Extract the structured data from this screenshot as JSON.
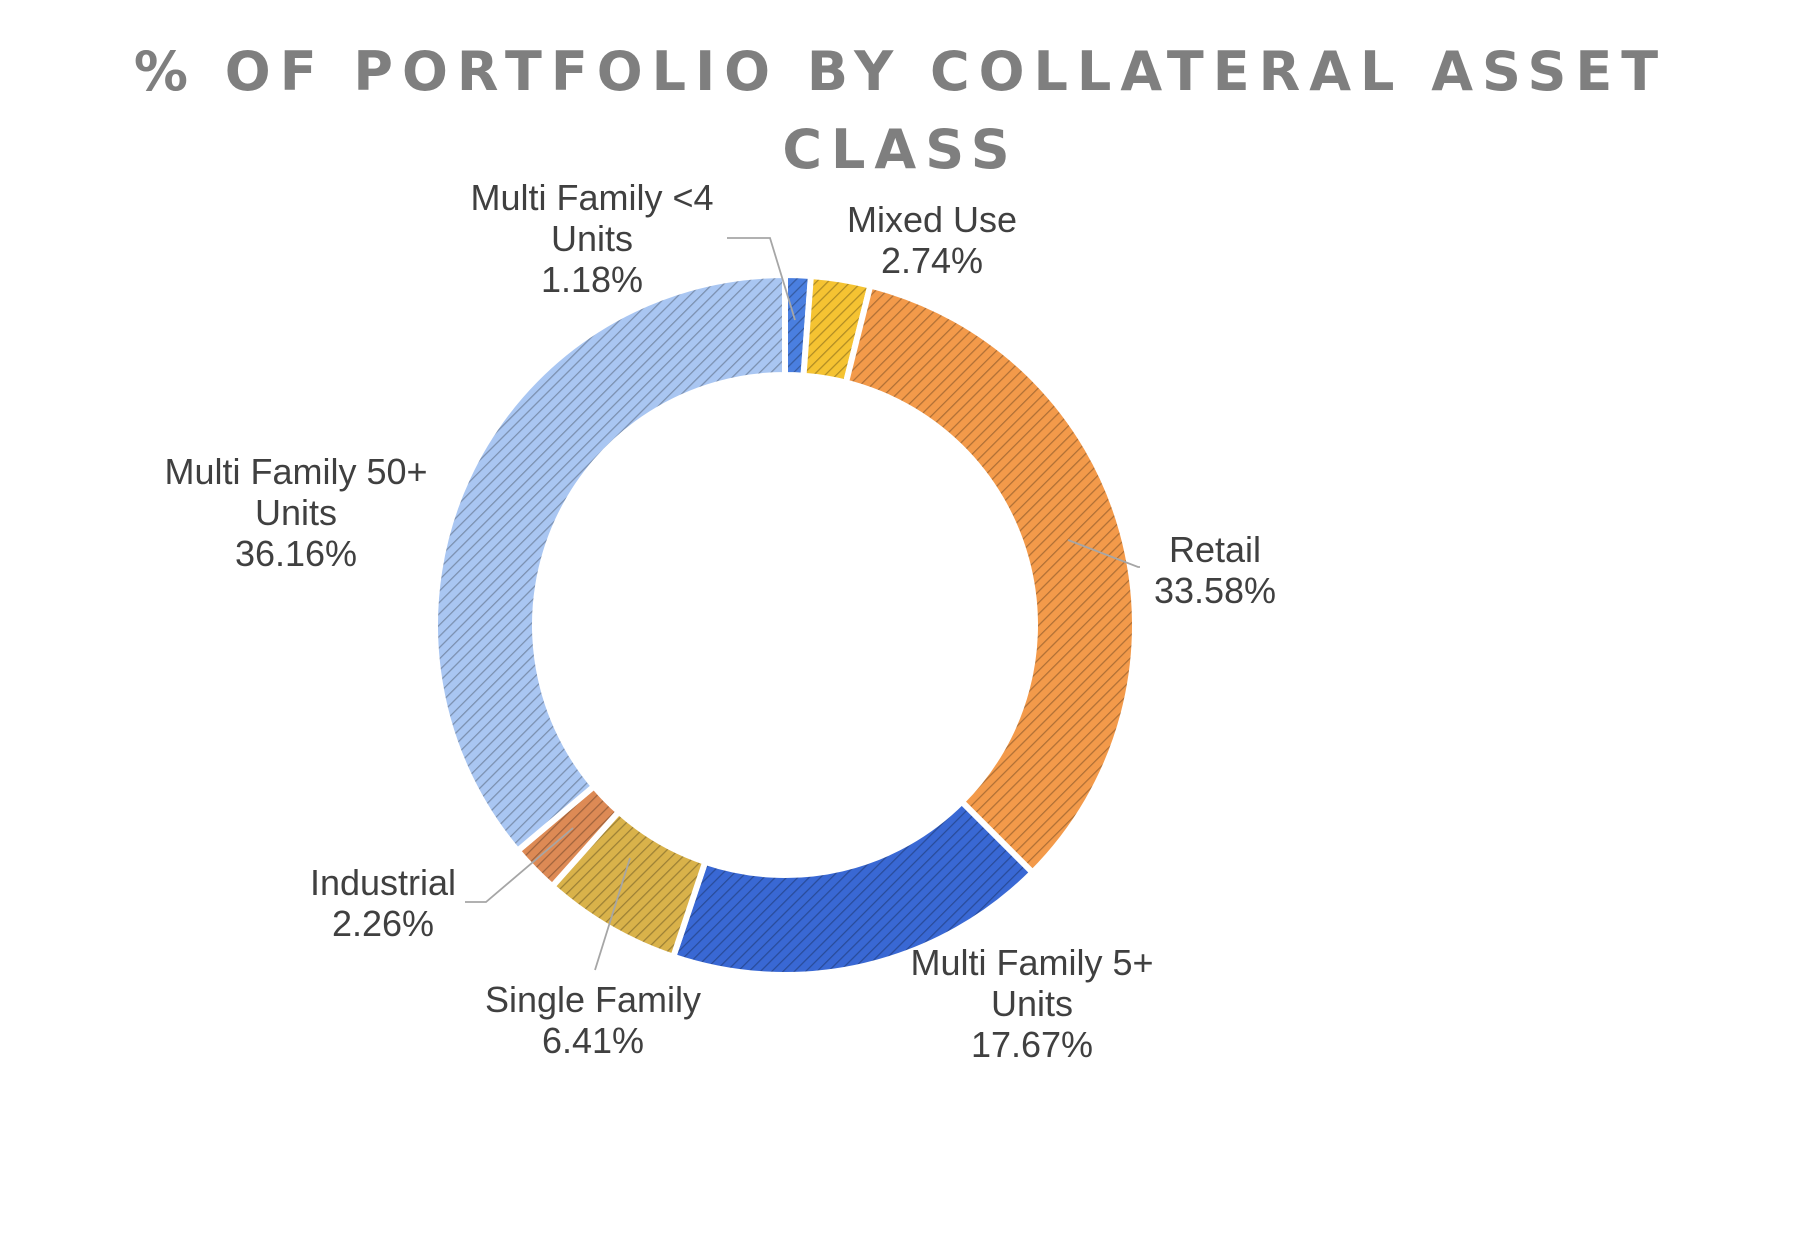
{
  "chart_data": {
    "type": "pie",
    "variant": "donut",
    "title_lines": [
      "% OF PORTFOLIO BY COLLATERAL ASSET",
      "CLASS"
    ],
    "legend": "none",
    "slices": [
      {
        "label_lines": [
          "Multi Family <4",
          "Units"
        ],
        "value": 1.18,
        "value_label": "1.18%",
        "color": "#4a7fe0"
      },
      {
        "label_lines": [
          "Mixed Use"
        ],
        "value": 2.74,
        "value_label": "2.74%",
        "color": "#f5c332"
      },
      {
        "label_lines": [
          "Retail"
        ],
        "value": 33.58,
        "value_label": "33.58%",
        "color": "#f39a4a"
      },
      {
        "label_lines": [
          "Multi Family 5+",
          "Units"
        ],
        "value": 17.67,
        "value_label": "17.67%",
        "color": "#3968d4"
      },
      {
        "label_lines": [
          "Single Family"
        ],
        "value": 6.41,
        "value_label": "6.41%",
        "color": "#d9b24a"
      },
      {
        "label_lines": [
          "Industrial"
        ],
        "value": 2.26,
        "value_label": "2.26%",
        "color": "#dd8a55"
      },
      {
        "label_lines": [
          "Multi Family 50+",
          "Units"
        ],
        "value": 36.16,
        "value_label": "36.16%",
        "color": "#a9c6f2"
      }
    ]
  }
}
